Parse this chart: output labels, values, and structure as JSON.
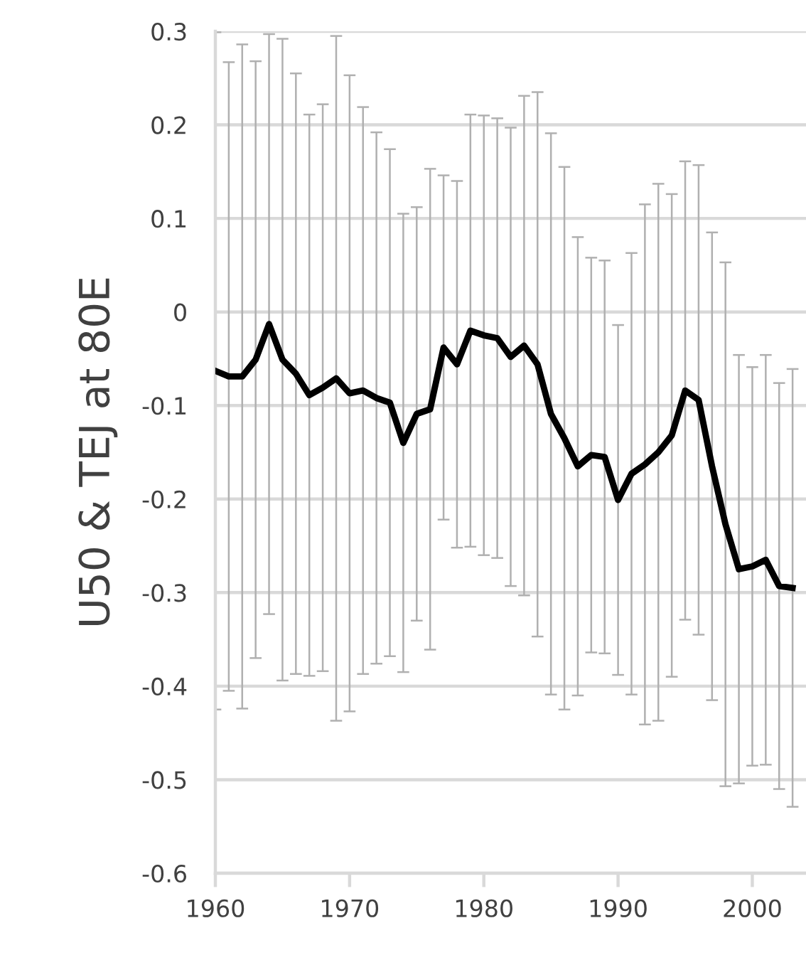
{
  "chart_data": {
    "type": "line",
    "ylabel": "U50 & TEJ at 80E",
    "x": [
      1960,
      1961,
      1962,
      1963,
      1964,
      1965,
      1966,
      1967,
      1968,
      1969,
      1970,
      1971,
      1972,
      1973,
      1974,
      1975,
      1976,
      1977,
      1978,
      1979,
      1980,
      1981,
      1982,
      1983,
      1984,
      1985,
      1986,
      1987,
      1988,
      1989,
      1990,
      1991,
      1992,
      1993,
      1994,
      1995,
      1996,
      1997,
      1998,
      1999,
      2000,
      2001,
      2002,
      2003
    ],
    "series": [
      {
        "color": "#000000",
        "values": [
          -0.063,
          -0.069,
          -0.069,
          -0.051,
          -0.013,
          -0.051,
          -0.066,
          -0.089,
          -0.081,
          -0.071,
          -0.087,
          -0.084,
          -0.092,
          -0.097,
          -0.14,
          -0.109,
          -0.104,
          -0.038,
          -0.056,
          -0.02,
          -0.025,
          -0.028,
          -0.048,
          -0.036,
          -0.056,
          -0.109,
          -0.135,
          -0.165,
          -0.153,
          -0.155,
          -0.201,
          -0.173,
          -0.163,
          -0.15,
          -0.132,
          -0.084,
          -0.094,
          -0.165,
          -0.227,
          -0.275,
          -0.272,
          -0.265,
          -0.293,
          -0.295
        ],
        "errors": [
          0.362,
          0.336,
          0.355,
          0.319,
          0.31,
          0.343,
          0.321,
          0.3,
          0.303,
          0.366,
          0.34,
          0.303,
          0.284,
          0.271,
          0.245,
          0.221,
          0.257,
          0.184,
          0.196,
          0.231,
          0.235,
          0.235,
          0.245,
          0.267,
          0.291,
          0.3,
          0.29,
          0.245,
          0.211,
          0.21,
          0.187,
          0.236,
          0.278,
          0.287,
          0.258,
          0.245,
          0.251,
          0.25,
          0.28,
          0.229,
          0.213,
          0.219,
          0.217,
          0.234
        ]
      }
    ],
    "xlim": [
      1960,
      2004
    ],
    "xticks": [
      1960,
      1970,
      1980,
      1990,
      2000
    ],
    "ylim": [
      -0.6,
      0.3
    ],
    "yticks": [
      -0.6,
      -0.5,
      -0.4,
      -0.3,
      -0.2,
      -0.1,
      0,
      0.1,
      0.2,
      0.3
    ],
    "grid": "y",
    "marker": "none",
    "line_style": "solid",
    "legend": false
  }
}
